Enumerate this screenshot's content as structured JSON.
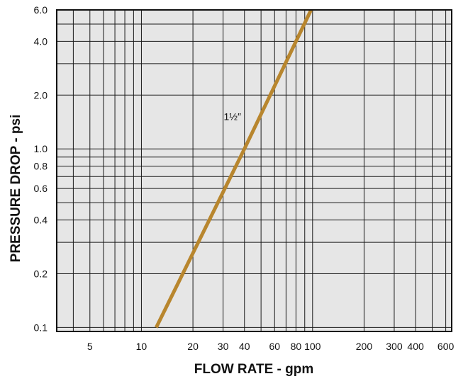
{
  "chart_data": {
    "type": "line",
    "title": "",
    "xlabel": "FLOW RATE - gpm",
    "ylabel": "PRESSURE DROP - psi",
    "x_scale": "log",
    "y_scale": "log",
    "xlim": [
      3.2,
      650
    ],
    "ylim": [
      0.095,
      6.0
    ],
    "grid": true,
    "x_ticks": [
      {
        "value": 5,
        "label": "5"
      },
      {
        "value": 10,
        "label": "10"
      },
      {
        "value": 20,
        "label": "20"
      },
      {
        "value": 30,
        "label": "30"
      },
      {
        "value": 40,
        "label": "40"
      },
      {
        "value": 60,
        "label": "60"
      },
      {
        "value": 80,
        "label": "80"
      },
      {
        "value": 100,
        "label": "100"
      },
      {
        "value": 200,
        "label": "200"
      },
      {
        "value": 300,
        "label": "300"
      },
      {
        "value": 400,
        "label": "400"
      },
      {
        "value": 600,
        "label": "600"
      }
    ],
    "y_ticks": [
      {
        "value": 0.1,
        "label": "0.1"
      },
      {
        "value": 0.2,
        "label": "0.2"
      },
      {
        "value": 0.4,
        "label": "0.4"
      },
      {
        "value": 0.6,
        "label": "0.6"
      },
      {
        "value": 0.8,
        "label": "0.8"
      },
      {
        "value": 1.0,
        "label": "1.0"
      },
      {
        "value": 2.0,
        "label": "2.0"
      },
      {
        "value": 4.0,
        "label": "4.0"
      },
      {
        "value": 6.0,
        "label": "6.0"
      }
    ],
    "x_gridlines": [
      4,
      5,
      6,
      7,
      8,
      9,
      10,
      20,
      30,
      40,
      50,
      60,
      70,
      80,
      90,
      100,
      200,
      300,
      400,
      500,
      600
    ],
    "y_gridlines": [
      0.1,
      0.2,
      0.3,
      0.4,
      0.5,
      0.6,
      0.7,
      0.8,
      0.9,
      1.0,
      2.0,
      3.0,
      4.0,
      5.0,
      6.0
    ],
    "series": [
      {
        "name": "1½″",
        "color": "#b8862e",
        "points": [
          [
            12.2,
            0.1
          ],
          [
            40,
            1.0
          ],
          [
            98,
            6.0
          ]
        ]
      }
    ],
    "annotations": [
      {
        "text": "1½″",
        "x": 34,
        "y": 1.45
      }
    ]
  }
}
